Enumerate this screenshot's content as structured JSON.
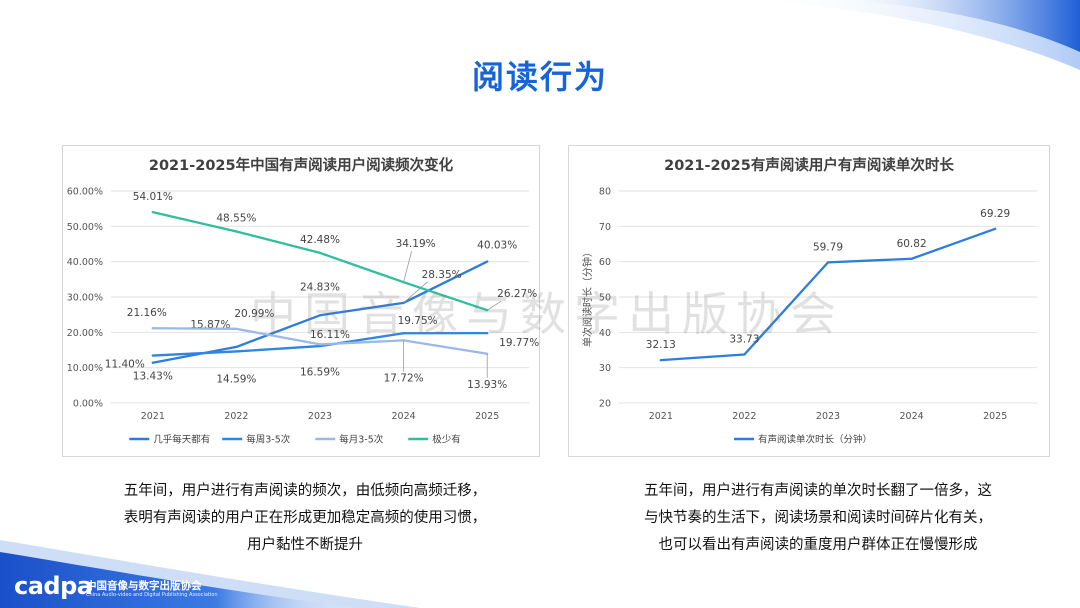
{
  "page": {
    "title": "阅读行为",
    "watermark": "中国音像与数字出版协会"
  },
  "logo": {
    "word": "cadpa",
    "cn": "中国音像与数字出版协会",
    "en": "China Audio-video and Digital Publishing Association"
  },
  "captions": {
    "left": [
      "五年间，用户进行有声阅读的频次，由低频向高频迁移，",
      "表明有声阅读的用户正在形成更加稳定高频的使用习惯，",
      "用户黏性不断提升"
    ],
    "right": [
      "五年间，用户进行有声阅读的单次时长翻了一倍多，这",
      "与快节奏的生活下，阅读场景和阅读时间碎片化有关，",
      "也可以看出有声阅读的重度用户群体正在慢慢形成"
    ]
  },
  "colors": {
    "accent": "#1565d8",
    "series": [
      "#2f7ddb",
      "#2e86e0",
      "#9ab8ea",
      "#2fbf9f"
    ]
  },
  "chart_data": [
    {
      "type": "line",
      "title": "2021-2025年中国有声阅读用户阅读频次变化",
      "xlabel": "",
      "ylabel": "",
      "x": [
        "2021",
        "2022",
        "2023",
        "2024",
        "2025"
      ],
      "y_ticks": [
        "0.00%",
        "10.00%",
        "20.00%",
        "30.00%",
        "40.00%",
        "50.00%",
        "60.00%"
      ],
      "ylim": [
        0,
        60
      ],
      "grid": true,
      "legend": "bottom",
      "series": [
        {
          "name": "几乎每天都有",
          "values": [
            11.4,
            15.87,
            24.83,
            28.35,
            40.03
          ],
          "labels": [
            "11.40%",
            "15.87%",
            "24.83%",
            "28.35%",
            "40.03%"
          ]
        },
        {
          "name": "每周3-5次",
          "values": [
            13.43,
            14.59,
            16.11,
            19.75,
            19.77
          ],
          "labels": [
            "13.43%",
            "14.59%",
            "16.11%",
            "19.75%",
            "19.77%"
          ]
        },
        {
          "name": "每月3-5次",
          "values": [
            21.16,
            20.99,
            16.59,
            17.72,
            13.93
          ],
          "labels": [
            "21.16%",
            "20.99%",
            "16.59%",
            "17.72%",
            "13.93%"
          ]
        },
        {
          "name": "极少有",
          "values": [
            54.01,
            48.55,
            42.48,
            34.19,
            26.27
          ],
          "labels": [
            "54.01%",
            "48.55%",
            "42.48%",
            "34.19%",
            "26.27%"
          ]
        }
      ]
    },
    {
      "type": "line",
      "title": "2021-2025有声阅读用户有声阅读单次时长",
      "xlabel": "",
      "ylabel": "单次阅读时长（分钟）",
      "x": [
        "2021",
        "2022",
        "2023",
        "2024",
        "2025"
      ],
      "y_ticks": [
        "20",
        "30",
        "40",
        "50",
        "60",
        "70",
        "80"
      ],
      "ylim": [
        20,
        80
      ],
      "grid": true,
      "legend": "bottom",
      "series": [
        {
          "name": "有声阅读单次时长（分钟）",
          "values": [
            32.13,
            33.73,
            59.79,
            60.82,
            69.29
          ],
          "labels": [
            "32.13",
            "33.73",
            "59.79",
            "60.82",
            "69.29"
          ]
        }
      ]
    }
  ]
}
